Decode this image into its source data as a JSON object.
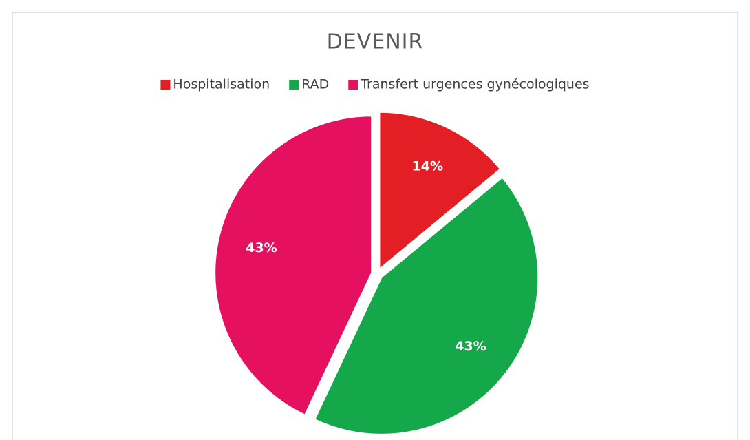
{
  "chart_data": {
    "type": "pie",
    "title": "DEVENIR",
    "categories": [
      "Hospitalisation",
      "RAD",
      "Transfert urgences gynécologiques"
    ],
    "values": [
      14,
      43,
      43
    ],
    "value_labels": [
      "14%",
      "43%",
      "43%"
    ],
    "colors": [
      "#e31e24",
      "#14a84a",
      "#e5105f"
    ],
    "legend": "top"
  }
}
